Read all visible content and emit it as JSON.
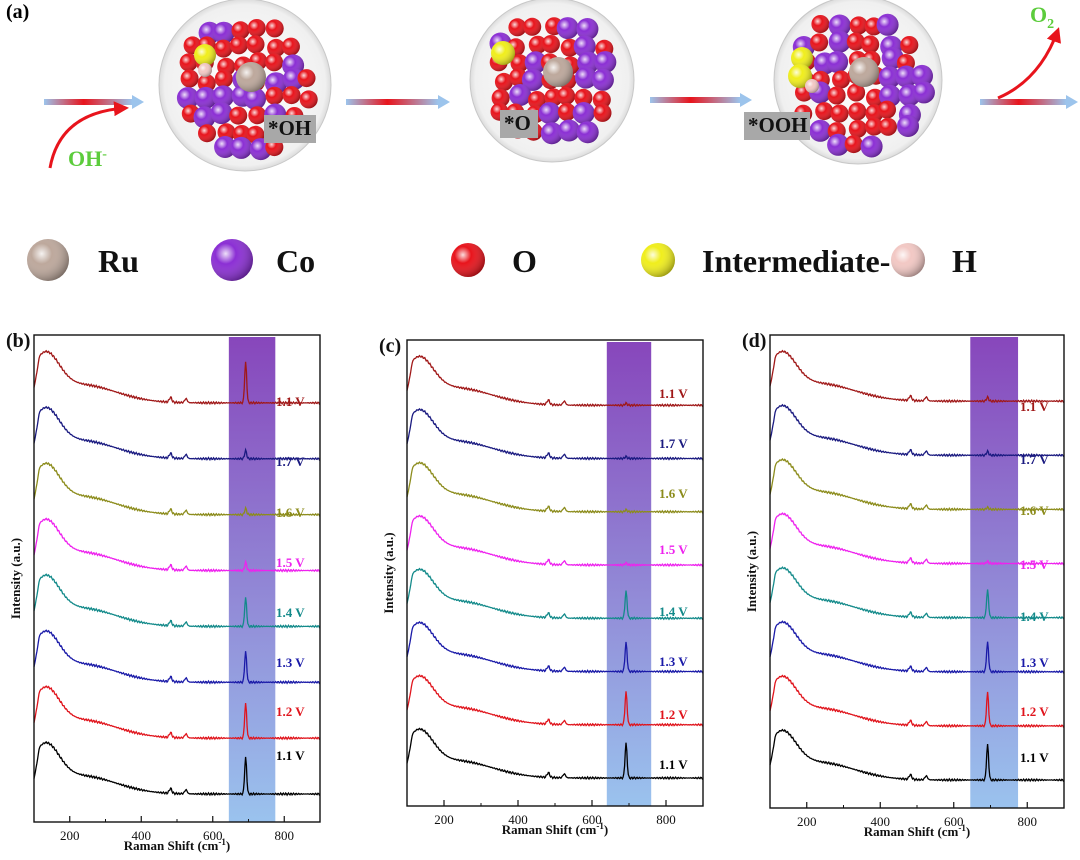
{
  "panel_a": {
    "label": "(a)",
    "states": [
      "*OH",
      "*O",
      "*OOH"
    ],
    "reactant": "OH",
    "reactant_charge": "-",
    "product": "O",
    "product_sub": "2"
  },
  "legend": {
    "items": [
      {
        "label": "Ru",
        "color": "#bda89c"
      },
      {
        "label": "Co",
        "color": "#8b2fd4"
      },
      {
        "label": "O",
        "color": "#e8141c"
      },
      {
        "label": "Intermediate-O",
        "color": "#f0ee1c"
      },
      {
        "label": "H",
        "color": "#f2c8c4"
      }
    ]
  },
  "chart_data": [
    {
      "type": "line",
      "panel": "(b)",
      "xlabel": "Raman Shift (cm",
      "xlabel_sup": "-1",
      "xlabel_close": ")",
      "ylabel": "Intensity (a.u.)",
      "xlim": [
        100,
        900
      ],
      "xticks": [
        200,
        400,
        600,
        800
      ],
      "highlight_band": [
        645,
        775
      ],
      "series": [
        {
          "name": "1.1 V",
          "color": "#000000",
          "peak_690": 0.9
        },
        {
          "name": "1.2 V",
          "color": "#e0141c",
          "peak_690": 0.85
        },
        {
          "name": "1.3 V",
          "color": "#1a1aa8",
          "peak_690": 0.75
        },
        {
          "name": "1.4 V",
          "color": "#138a8a",
          "peak_690": 0.7
        },
        {
          "name": "1.5 V",
          "color": "#ee22ee",
          "peak_690": 0.2
        },
        {
          "name": "1.6 V",
          "color": "#8c8c1c",
          "peak_690": 0.15
        },
        {
          "name": "1.7 V",
          "color": "#1a1a80",
          "peak_690": 0.2
        },
        {
          "name": "1.1 V",
          "color": "#a01818",
          "peak_690": 1.0
        }
      ]
    },
    {
      "type": "line",
      "panel": "(c)",
      "xlabel": "Raman Shift (cm",
      "xlabel_sup": "-1",
      "xlabel_close": ")",
      "ylabel": "Intensity (a.u.)",
      "xlim": [
        100,
        900
      ],
      "xticks": [
        200,
        400,
        600,
        800
      ],
      "highlight_band": [
        640,
        760
      ],
      "series": [
        {
          "name": "1.1 V",
          "color": "#000000",
          "peak_690": 0.9
        },
        {
          "name": "1.2 V",
          "color": "#e0141c",
          "peak_690": 0.85
        },
        {
          "name": "1.3 V",
          "color": "#1a1aa8",
          "peak_690": 0.75
        },
        {
          "name": "1.4 V",
          "color": "#138a8a",
          "peak_690": 0.7
        },
        {
          "name": "1.5 V",
          "color": "#ee22ee",
          "peak_690": 0.05
        },
        {
          "name": "1.6 V",
          "color": "#8c8c1c",
          "peak_690": 0.05
        },
        {
          "name": "1.7 V",
          "color": "#1a1a80",
          "peak_690": 0.05
        },
        {
          "name": "1.1 V",
          "color": "#a01818",
          "peak_690": 0.05
        }
      ]
    },
    {
      "type": "line",
      "panel": "(d)",
      "xlabel": "Raman Shift (cm",
      "xlabel_sup": "-1",
      "xlabel_close": ")",
      "ylabel": "Intensity (a.u.)",
      "xlim": [
        100,
        900
      ],
      "xticks": [
        200,
        400,
        600,
        800
      ],
      "highlight_band": [
        645,
        775
      ],
      "series": [
        {
          "name": "1.1 V",
          "color": "#000000",
          "peak_690": 0.9
        },
        {
          "name": "1.2 V",
          "color": "#e0141c",
          "peak_690": 0.85
        },
        {
          "name": "1.3 V",
          "color": "#1a1aa8",
          "peak_690": 0.75
        },
        {
          "name": "1.4 V",
          "color": "#138a8a",
          "peak_690": 0.7
        },
        {
          "name": "1.5 V",
          "color": "#ee22ee",
          "peak_690": 0.05
        },
        {
          "name": "1.6 V",
          "color": "#8c8c1c",
          "peak_690": 0.05
        },
        {
          "name": "1.7 V",
          "color": "#1a1a80",
          "peak_690": 0.1
        },
        {
          "name": "1.1 V",
          "color": "#a01818",
          "peak_690": 0.1
        }
      ]
    }
  ]
}
